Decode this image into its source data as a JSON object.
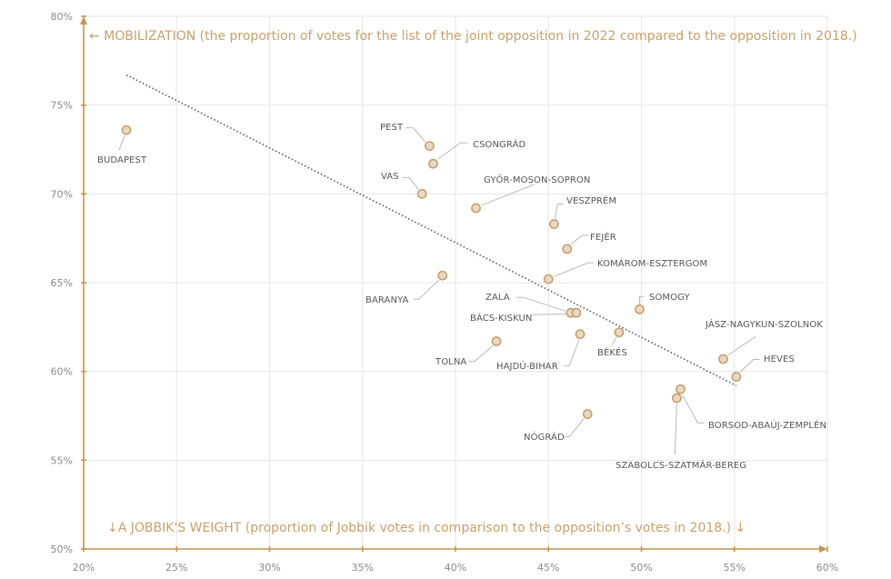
{
  "chart_data": {
    "type": "scatter",
    "title": "",
    "ylabel": "← MOBILIZATION (the proportion of votes for the list of the joint opposition in 2022 compared to the opposition in 2018.)",
    "xlabel": "↓A JOBBIK'S WEIGHT (proportion of Jobbik votes in comparison to the opposition’s votes in 2018.) ↓",
    "xlim": [
      20,
      60
    ],
    "ylim": [
      50,
      80
    ],
    "x_unit": "%",
    "y_unit": "%",
    "grid": true,
    "x_ticks": [
      20,
      25,
      30,
      35,
      40,
      45,
      50,
      55,
      60
    ],
    "y_ticks": [
      50,
      55,
      60,
      65,
      70,
      75,
      80
    ],
    "x_tick_labels": [
      "20%",
      "25%",
      "30%",
      "35%",
      "40%",
      "45%",
      "50%",
      "55%",
      "60%"
    ],
    "y_tick_labels": [
      "50%",
      "55%",
      "60%",
      "65%",
      "70%",
      "75%",
      "80%"
    ],
    "trendline": {
      "style": "dotted",
      "from": [
        22.3,
        76.7
      ],
      "to": [
        55.1,
        59.2
      ]
    },
    "colors": {
      "axis": "#c8934f",
      "point_fill": "#e6d9c8",
      "point_stroke": "#c9a06a",
      "axis_title": "#c9a06a",
      "trend": "#555555"
    },
    "points": [
      {
        "label": "BUDAPEST",
        "x": 22.3,
        "y": 73.6
      },
      {
        "label": "PEST",
        "x": 38.6,
        "y": 72.7
      },
      {
        "label": "CSONGRÁD",
        "x": 38.8,
        "y": 71.7
      },
      {
        "label": "VAS",
        "x": 38.2,
        "y": 70.0
      },
      {
        "label": "GYŐR-MOSON-SOPRON",
        "x": 41.1,
        "y": 69.2
      },
      {
        "label": "VESZPRÉM",
        "x": 45.3,
        "y": 68.3
      },
      {
        "label": "FEJÉR",
        "x": 46.0,
        "y": 66.9
      },
      {
        "label": "KOMÁROM-ESZTERGOM",
        "x": 45.0,
        "y": 65.2
      },
      {
        "label": "BARANYA",
        "x": 39.3,
        "y": 65.4
      },
      {
        "label": "ZALA",
        "x": 46.2,
        "y": 63.3
      },
      {
        "label": "BÁCS-KISKUN",
        "x": 46.5,
        "y": 63.3
      },
      {
        "label": "SOMOGY",
        "x": 49.9,
        "y": 63.5
      },
      {
        "label": "HAJDÚ-BIHAR",
        "x": 46.7,
        "y": 62.1
      },
      {
        "label": "BÉKÉS",
        "x": 48.8,
        "y": 62.2
      },
      {
        "label": "TOLNA",
        "x": 42.2,
        "y": 61.7
      },
      {
        "label": "JÁSZ-NAGYKUN-SZOLNOK",
        "x": 54.4,
        "y": 60.7
      },
      {
        "label": "HEVES",
        "x": 55.1,
        "y": 59.7
      },
      {
        "label": "BORSOD-ABAÚJ-ZEMPLÉN",
        "x": 52.1,
        "y": 59.0
      },
      {
        "label": "SZABOLCS-SZATMÁR-BEREG",
        "x": 51.9,
        "y": 58.5
      },
      {
        "label": "NÓGRÁD",
        "x": 47.1,
        "y": 57.6
      }
    ]
  }
}
